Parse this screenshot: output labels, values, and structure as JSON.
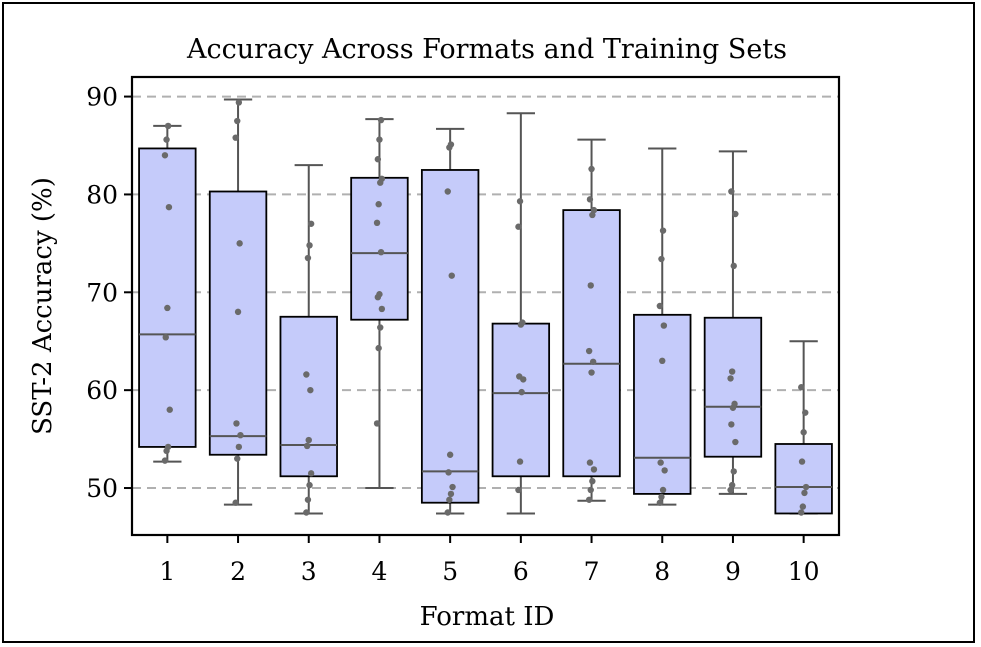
{
  "chart_data": {
    "type": "box",
    "title": "Accuracy Across Formats and Training Sets",
    "xlabel": "Format ID",
    "ylabel": "SST-2 Accuracy (%)",
    "ylim": [
      45.2,
      92.0
    ],
    "yticks": [
      50,
      60,
      70,
      80,
      90
    ],
    "grid": "horizontal-dashed",
    "colors": {
      "box_fill": "#c5cbfa",
      "box_edge": "#000000",
      "whisker": "#555555",
      "points": "#6a6a6a",
      "grid": "#b0b0b0"
    },
    "categories": [
      "1",
      "2",
      "3",
      "4",
      "5",
      "6",
      "7",
      "8",
      "9",
      "10"
    ],
    "boxes": [
      {
        "id": "1",
        "whisker_low": 52.7,
        "q1": 54.2,
        "median": 65.7,
        "q3": 84.7,
        "whisker_high": 87.0,
        "points": [
          52.8,
          53.8,
          54.2,
          58.0,
          65.4,
          68.4,
          78.7,
          84.0,
          85.6,
          87.0
        ]
      },
      {
        "id": "2",
        "whisker_low": 48.3,
        "q1": 53.4,
        "median": 55.3,
        "q3": 80.3,
        "whisker_high": 89.7,
        "points": [
          48.5,
          53.0,
          54.2,
          55.4,
          56.6,
          68.0,
          75.0,
          85.8,
          87.5,
          89.4
        ]
      },
      {
        "id": "3",
        "whisker_low": 47.4,
        "q1": 51.2,
        "median": 54.4,
        "q3": 67.5,
        "whisker_high": 83.0,
        "points": [
          47.5,
          48.8,
          50.3,
          51.5,
          54.3,
          54.9,
          60.0,
          61.6,
          73.5,
          74.8,
          77.0
        ]
      },
      {
        "id": "4",
        "whisker_low": 50.0,
        "q1": 67.2,
        "median": 74.0,
        "q3": 81.7,
        "whisker_high": 87.7,
        "points": [
          56.6,
          64.3,
          66.4,
          68.3,
          69.5,
          69.8,
          74.1,
          77.1,
          79.0,
          81.2,
          81.6,
          83.6,
          85.6,
          87.6
        ]
      },
      {
        "id": "5",
        "whisker_low": 47.4,
        "q1": 48.5,
        "median": 51.7,
        "q3": 82.5,
        "whisker_high": 86.7,
        "points": [
          47.5,
          48.8,
          49.4,
          50.1,
          51.6,
          53.4,
          71.7,
          80.3,
          84.8,
          85.1
        ]
      },
      {
        "id": "6",
        "whisker_low": 47.4,
        "q1": 51.2,
        "median": 59.7,
        "q3": 66.8,
        "whisker_high": 88.3,
        "points": [
          49.8,
          52.7,
          59.8,
          61.1,
          61.4,
          66.7,
          66.9,
          76.7,
          79.3
        ]
      },
      {
        "id": "7",
        "whisker_low": 48.7,
        "q1": 51.2,
        "median": 62.7,
        "q3": 78.4,
        "whisker_high": 85.6,
        "points": [
          48.8,
          49.8,
          50.7,
          51.9,
          52.6,
          61.8,
          62.9,
          64.0,
          70.7,
          77.9,
          78.4,
          79.5,
          82.6
        ]
      },
      {
        "id": "8",
        "whisker_low": 48.3,
        "q1": 49.4,
        "median": 53.1,
        "q3": 67.7,
        "whisker_high": 84.7,
        "points": [
          48.5,
          49.1,
          49.8,
          51.8,
          52.6,
          63.0,
          66.6,
          68.6,
          73.4,
          76.3
        ]
      },
      {
        "id": "9",
        "whisker_low": 49.4,
        "q1": 53.2,
        "median": 58.3,
        "q3": 67.4,
        "whisker_high": 84.4,
        "points": [
          49.8,
          50.3,
          51.7,
          54.7,
          56.5,
          58.2,
          58.6,
          61.2,
          61.9,
          72.7,
          78.0,
          80.3
        ]
      },
      {
        "id": "10",
        "whisker_low": 47.4,
        "q1": 47.4,
        "median": 50.1,
        "q3": 54.5,
        "whisker_high": 65.0,
        "points": [
          47.5,
          48.1,
          49.5,
          50.1,
          52.7,
          55.7,
          57.7,
          60.3
        ]
      }
    ]
  }
}
